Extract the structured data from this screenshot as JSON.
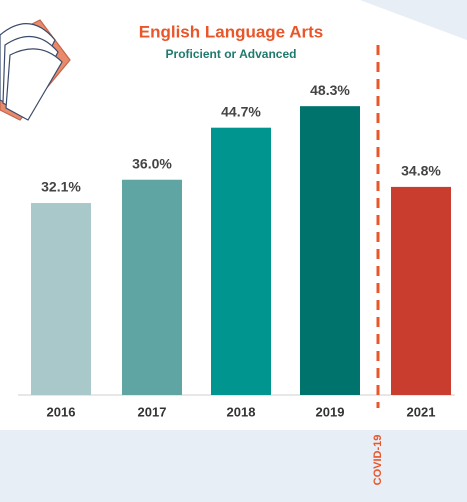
{
  "chart_data": {
    "type": "bar",
    "title": "English Language Arts",
    "subtitle": "Proficient or Advanced",
    "categories": [
      "2016",
      "2017",
      "2018",
      "2019",
      "2021"
    ],
    "values": [
      32.1,
      36.0,
      44.7,
      48.3,
      34.8
    ],
    "value_labels": [
      "32.1%",
      "36.0%",
      "44.7%",
      "48.3%",
      "34.8%"
    ],
    "colors": [
      "#a9c8c9",
      "#5ea5a3",
      "#00958f",
      "#00736d",
      "#c93d2f"
    ],
    "annotations": [
      {
        "text": "COVID-19",
        "color": "#e8562a"
      }
    ]
  }
}
